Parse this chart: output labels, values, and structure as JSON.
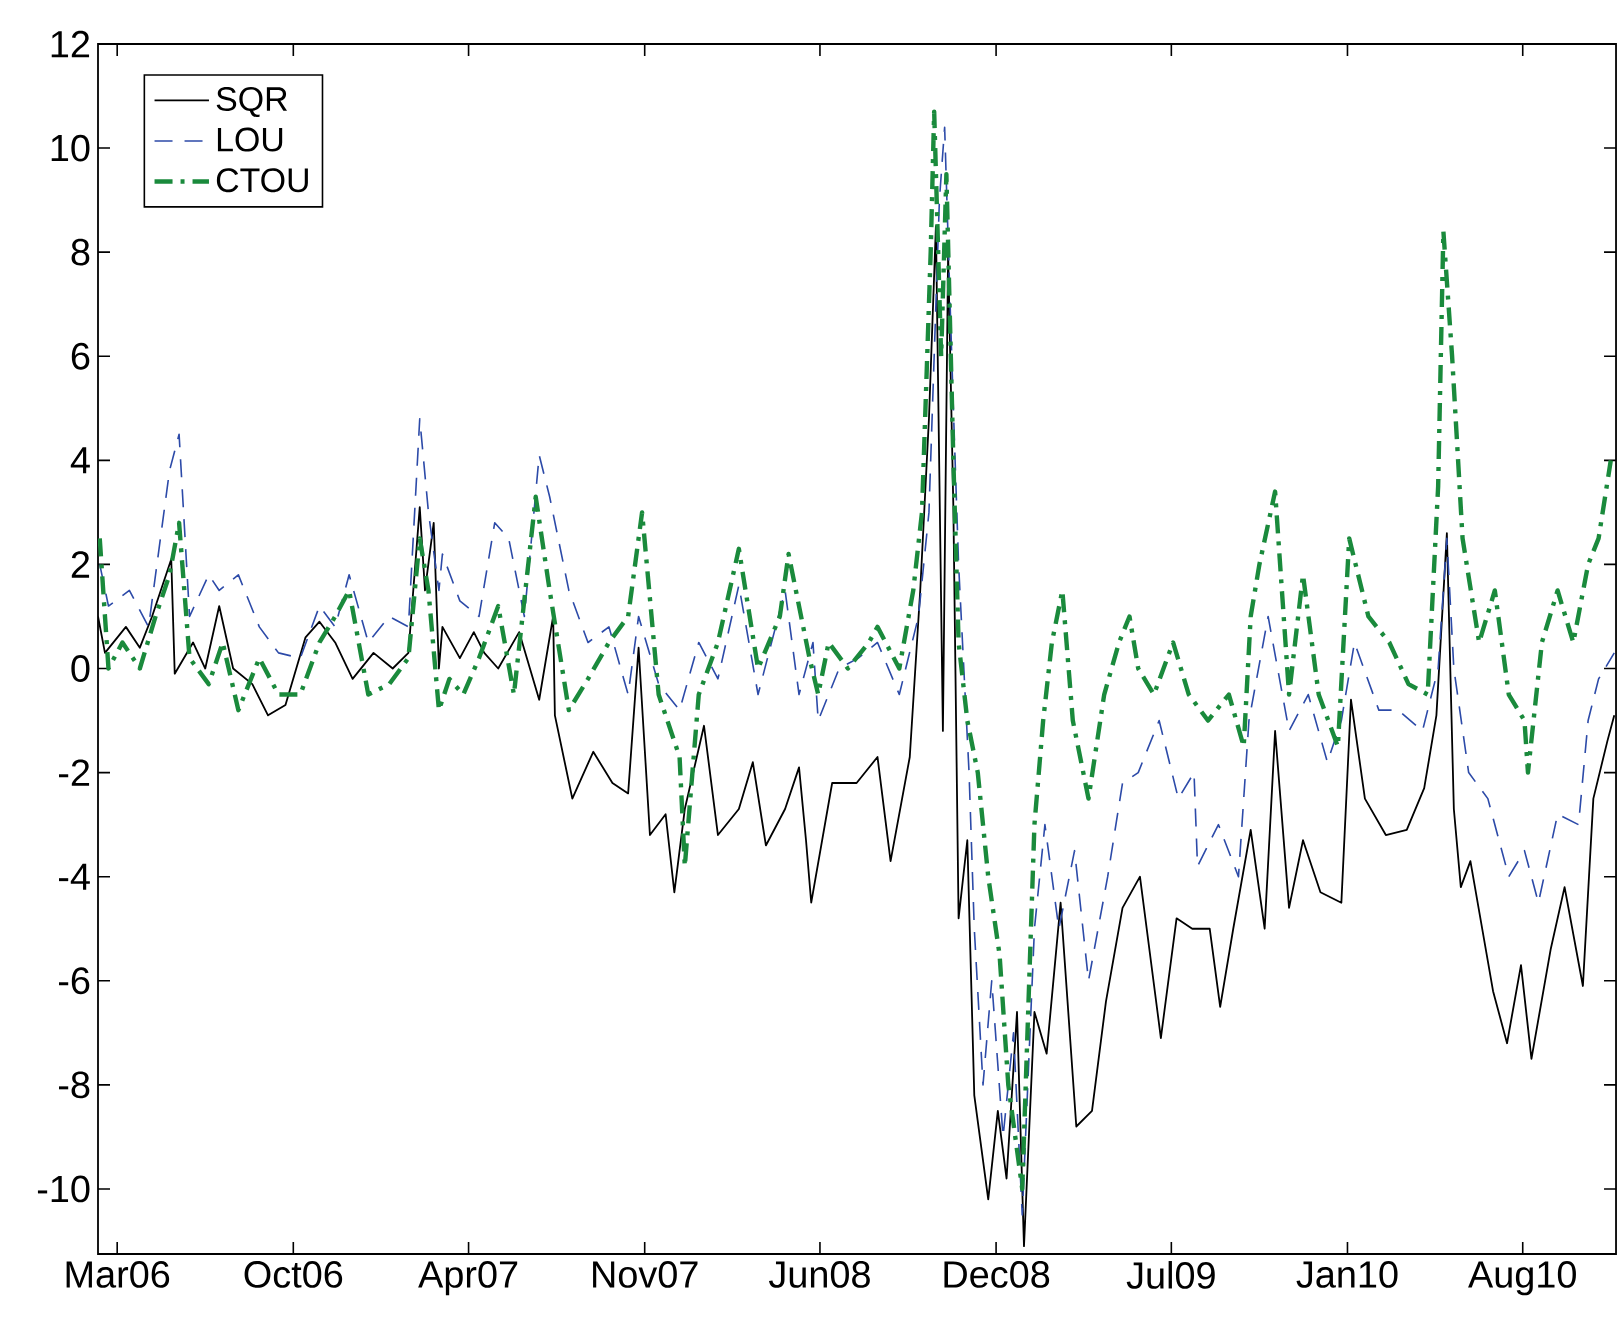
{
  "chart_data": {
    "type": "line",
    "xlim": [
      "2006-02-26",
      "2010-12-03"
    ],
    "ylim": [
      -11.25,
      12
    ],
    "xticks": [
      {
        "value": "2006-03-20",
        "label": "Mar06"
      },
      {
        "value": "2006-10-08",
        "label": "Oct06"
      },
      {
        "value": "2007-04-27",
        "label": "Apr07"
      },
      {
        "value": "2007-11-15",
        "label": "Nov07"
      },
      {
        "value": "2008-06-03",
        "label": "Jun08"
      },
      {
        "value": "2008-12-22",
        "label": "Dec08"
      },
      {
        "value": "2009-07-11",
        "label": "Jul09"
      },
      {
        "value": "2010-01-29",
        "label": "Jan10"
      },
      {
        "value": "2010-08-18",
        "label": "Aug10"
      }
    ],
    "yticks": [
      -10,
      -8,
      -6,
      -4,
      -2,
      0,
      2,
      4,
      6,
      8,
      10,
      12
    ],
    "legend": "top left",
    "marker": "none",
    "series": [
      {
        "name": "SQR",
        "color": "#000000",
        "line_style": "solid",
        "x": [
          "2006-02-26",
          "2006-03-06",
          "2006-03-30",
          "2006-04-15",
          "2006-04-29",
          "2006-05-21",
          "2006-05-25",
          "2006-06-15",
          "2006-06-29",
          "2006-07-15",
          "2006-07-31",
          "2006-08-22",
          "2006-09-09",
          "2006-09-29",
          "2006-10-22",
          "2006-11-07",
          "2006-11-25",
          "2006-12-15",
          "2007-01-08",
          "2007-01-30",
          "2007-02-17",
          "2007-03-02",
          "2007-03-08",
          "2007-03-18",
          "2007-03-24",
          "2007-03-28",
          "2007-04-17",
          "2007-05-03",
          "2007-05-15",
          "2007-05-31",
          "2007-06-24",
          "2007-07-17",
          "2007-08-02",
          "2007-08-04",
          "2007-08-24",
          "2007-09-17",
          "2007-10-09",
          "2007-10-27",
          "2007-11-08",
          "2007-11-21",
          "2007-12-09",
          "2007-12-19",
          "2007-12-31",
          "2008-01-22",
          "2008-02-07",
          "2008-03-02",
          "2008-03-18",
          "2008-04-02",
          "2008-04-24",
          "2008-05-10",
          "2008-05-18",
          "2008-05-24",
          "2008-06-17",
          "2008-07-15",
          "2008-08-08",
          "2008-08-23",
          "2008-09-14",
          "2008-09-26",
          "2008-10-06",
          "2008-10-14",
          "2008-10-22",
          "2008-10-28",
          "2008-11-03",
          "2008-11-09",
          "2008-11-19",
          "2008-11-27",
          "2008-12-13",
          "2008-12-24",
          "2009-01-03",
          "2009-01-15",
          "2009-01-23",
          "2009-02-04",
          "2009-02-18",
          "2009-03-06",
          "2009-03-24",
          "2009-04-11",
          "2009-04-27",
          "2009-05-16",
          "2009-06-05",
          "2009-06-29",
          "2009-07-17",
          "2009-08-04",
          "2009-08-24",
          "2009-09-05",
          "2009-09-20",
          "2009-10-10",
          "2009-10-26",
          "2009-11-07",
          "2009-11-23",
          "2009-12-09",
          "2009-12-29",
          "2010-01-22",
          "2010-02-02",
          "2010-02-18",
          "2010-03-14",
          "2010-04-07",
          "2010-04-27",
          "2010-05-11",
          "2010-05-23",
          "2010-05-31",
          "2010-06-08",
          "2010-06-19",
          "2010-07-15",
          "2010-07-31",
          "2010-08-16",
          "2010-08-28",
          "2010-09-19",
          "2010-10-05",
          "2010-10-26",
          "2010-11-07",
          "2010-11-23",
          "2010-12-01"
        ],
        "values": [
          1.0,
          0.3,
          0.8,
          0.4,
          1.0,
          2.1,
          -0.1,
          0.5,
          0,
          1.2,
          0,
          -0.3,
          -0.9,
          -0.7,
          0.6,
          0.9,
          0.5,
          -0.2,
          0.3,
          0,
          0.3,
          3.1,
          1.5,
          2.8,
          0.0,
          0.8,
          0.2,
          0.7,
          0.3,
          0,
          0.7,
          -0.6,
          1.0,
          -0.9,
          -2.5,
          -1.6,
          -2.2,
          -2.4,
          0.4,
          -3.2,
          -2.8,
          -4.3,
          -2.7,
          -1.1,
          -3.2,
          -2.7,
          -1.8,
          -3.4,
          -2.7,
          -1.9,
          -3.3,
          -4.5,
          -2.2,
          -2.2,
          -1.7,
          -3.7,
          -1.7,
          1.5,
          4.8,
          8.5,
          -1.2,
          8.0,
          3.1,
          -4.8,
          -3.3,
          -8.2,
          -10.2,
          -8.5,
          -9.8,
          -6.6,
          -11.1,
          -6.6,
          -7.4,
          -4.5,
          -8.8,
          -8.5,
          -6.4,
          -4.6,
          -4.0,
          -7.1,
          -4.8,
          -5.0,
          -5.0,
          -6.5,
          -5.0,
          -3.1,
          -5.0,
          -1.2,
          -4.6,
          -3.3,
          -4.3,
          -4.5,
          -0.6,
          -2.5,
          -3.2,
          -3.1,
          -2.3,
          -0.9,
          2.6,
          -2.7,
          -4.2,
          -3.7,
          -6.2,
          -7.2,
          -5.7,
          -7.5,
          -5.4,
          -4.2,
          -6.1,
          -2.5,
          -1.4,
          -0.9
        ]
      },
      {
        "name": "LOU",
        "color": "#2c4aa8",
        "line_style": "dashed",
        "x": [
          "2006-02-28",
          "2006-03-10",
          "2006-04-03",
          "2006-04-25",
          "2006-05-19",
          "2006-05-30",
          "2006-06-11",
          "2006-07-03",
          "2006-07-15",
          "2006-08-06",
          "2006-08-30",
          "2006-09-21",
          "2006-10-16",
          "2006-11-07",
          "2006-11-25",
          "2006-12-11",
          "2007-01-02",
          "2007-01-26",
          "2007-02-17",
          "2007-03-02",
          "2007-03-12",
          "2007-03-24",
          "2007-03-28",
          "2007-04-17",
          "2007-05-09",
          "2007-05-27",
          "2007-06-12",
          "2007-06-30",
          "2007-07-17",
          "2007-07-29",
          "2007-08-20",
          "2007-09-11",
          "2007-10-05",
          "2007-10-27",
          "2007-11-08",
          "2007-12-01",
          "2007-12-25",
          "2008-01-16",
          "2008-02-07",
          "2008-03-02",
          "2008-03-24",
          "2008-04-24",
          "2008-05-10",
          "2008-05-26",
          "2008-06-01",
          "2008-06-25",
          "2008-07-17",
          "2008-08-08",
          "2008-09-02",
          "2008-09-24",
          "2008-10-06",
          "2008-10-18",
          "2008-10-24",
          "2008-11-03",
          "2008-11-09",
          "2008-11-21",
          "2008-11-27",
          "2008-12-07",
          "2008-12-17",
          "2008-12-30",
          "2009-01-11",
          "2009-01-21",
          "2009-02-04",
          "2009-02-16",
          "2009-03-04",
          "2009-03-22",
          "2009-04-07",
          "2009-04-29",
          "2009-05-16",
          "2009-06-03",
          "2009-06-27",
          "2009-07-19",
          "2009-08-06",
          "2009-08-10",
          "2009-09-03",
          "2009-09-26",
          "2009-10-08",
          "2009-10-30",
          "2009-11-23",
          "2009-12-15",
          "2010-01-06",
          "2010-01-22",
          "2010-02-06",
          "2010-03-06",
          "2010-03-28",
          "2010-04-25",
          "2010-05-13",
          "2010-05-23",
          "2010-05-31",
          "2010-06-17",
          "2010-07-09",
          "2010-08-02",
          "2010-08-20",
          "2010-09-05",
          "2010-09-27",
          "2010-10-21",
          "2010-11-01",
          "2010-11-13",
          "2010-12-01"
        ],
        "values": [
          2.0,
          1.2,
          1.5,
          0.8,
          3.8,
          4.5,
          1.0,
          1.8,
          1.5,
          1.8,
          0.8,
          0.3,
          0.2,
          1.2,
          0.8,
          1.8,
          0.5,
          1.0,
          0.8,
          4.8,
          3.0,
          1.5,
          2.2,
          1.3,
          1.0,
          2.8,
          2.5,
          1.0,
          4.1,
          3.3,
          1.5,
          0.5,
          0.8,
          -0.5,
          1.0,
          -0.3,
          -0.8,
          0.5,
          -0.2,
          1.6,
          -0.5,
          1.5,
          -0.5,
          0.5,
          -1.0,
          0,
          0.2,
          0.5,
          -0.5,
          1.0,
          3.0,
          9.0,
          10.4,
          5.0,
          2.0,
          -2.0,
          -5.0,
          -8.0,
          -6.0,
          -9.0,
          -7.0,
          -10.5,
          -5.0,
          -3.0,
          -5.0,
          -3.5,
          -6.0,
          -4.0,
          -2.2,
          -2.0,
          -1.0,
          -2.5,
          -2.0,
          -3.8,
          -3.0,
          -4.0,
          -1.0,
          1.0,
          -1.2,
          -0.5,
          -1.8,
          -1.0,
          0.5,
          -0.8,
          -0.8,
          -1.2,
          0,
          2.5,
          0.0,
          -2.0,
          -2.5,
          -4.0,
          -3.5,
          -4.5,
          -2.8,
          -3.0,
          -1.0,
          -0.2,
          0.3
        ]
      },
      {
        "name": "CTOU",
        "color": "#1a8a3c",
        "line_style": "dashdot",
        "x": [
          "2006-02-28",
          "2006-03-10",
          "2006-03-26",
          "2006-04-15",
          "2006-05-03",
          "2006-05-19",
          "2006-05-30",
          "2006-06-11",
          "2006-07-03",
          "2006-07-19",
          "2006-08-06",
          "2006-08-30",
          "2006-09-21",
          "2006-10-16",
          "2006-11-07",
          "2006-11-25",
          "2006-12-11",
          "2007-01-02",
          "2007-01-26",
          "2007-02-17",
          "2007-03-02",
          "2007-03-12",
          "2007-03-24",
          "2007-04-05",
          "2007-04-21",
          "2007-05-09",
          "2007-05-31",
          "2007-06-18",
          "2007-07-13",
          "2007-07-29",
          "2007-08-20",
          "2007-09-11",
          "2007-10-05",
          "2007-10-27",
          "2007-11-12",
          "2007-12-01",
          "2007-12-25",
          "2007-12-31",
          "2008-01-16",
          "2008-02-07",
          "2008-03-02",
          "2008-03-24",
          "2008-04-18",
          "2008-04-28",
          "2008-05-22",
          "2008-06-01",
          "2008-06-13",
          "2008-07-05",
          "2008-07-29",
          "2008-08-08",
          "2008-09-02",
          "2008-09-18",
          "2008-09-28",
          "2008-10-08",
          "2008-10-12",
          "2008-10-20",
          "2008-10-26",
          "2008-11-03",
          "2008-11-09",
          "2008-11-19",
          "2008-12-01",
          "2008-12-13",
          "2008-12-26",
          "2009-01-05",
          "2009-01-21",
          "2009-02-04",
          "2009-02-14",
          "2009-02-24",
          "2009-03-08",
          "2009-03-20",
          "2009-04-07",
          "2009-04-25",
          "2009-05-12",
          "2009-05-24",
          "2009-06-03",
          "2009-06-21",
          "2009-07-13",
          "2009-07-31",
          "2009-08-22",
          "2009-09-15",
          "2009-10-02",
          "2009-10-10",
          "2009-10-20",
          "2009-11-07",
          "2009-11-23",
          "2009-12-09",
          "2009-12-27",
          "2010-01-18",
          "2010-01-31",
          "2010-02-22",
          "2010-03-18",
          "2010-04-09",
          "2010-05-01",
          "2010-05-13",
          "2010-05-19",
          "2010-05-29",
          "2010-06-10",
          "2010-06-29",
          "2010-07-17",
          "2010-08-02",
          "2010-08-20",
          "2010-08-24",
          "2010-09-09",
          "2010-09-27",
          "2010-10-15",
          "2010-11-01",
          "2010-11-13",
          "2010-11-27"
        ],
        "values": [
          2.5,
          0,
          0.5,
          0,
          1.0,
          1.8,
          2.8,
          0.2,
          -0.3,
          0.5,
          -0.8,
          0.2,
          -0.5,
          -0.5,
          0.5,
          1.0,
          1.5,
          -0.5,
          -0.3,
          0.2,
          2.5,
          1.5,
          -0.8,
          -0.2,
          -0.5,
          0.2,
          1.2,
          -0.5,
          3.3,
          1.5,
          -0.8,
          -0.2,
          0.5,
          1.0,
          3.0,
          -0.5,
          -1.7,
          -3.8,
          -0.5,
          0.5,
          2.3,
          0,
          1.0,
          2.2,
          0.2,
          -0.5,
          0.5,
          0.0,
          0.5,
          0.8,
          0,
          1.5,
          3.0,
          8.0,
          10.7,
          6.0,
          9.5,
          4.0,
          0.5,
          -1.0,
          -2.0,
          -4.0,
          -5.5,
          -8.0,
          -10.0,
          -3.0,
          -1.0,
          0.5,
          1.5,
          -1.0,
          -2.5,
          -0.5,
          0.5,
          1.0,
          0.0,
          -0.5,
          0.5,
          -0.5,
          -1.0,
          -0.5,
          -1.5,
          1.0,
          2.0,
          3.4,
          -0.5,
          1.8,
          -0.5,
          -1.5,
          2.5,
          1.0,
          0.5,
          -0.3,
          -0.5,
          3.5,
          8.4,
          6.0,
          2.5,
          0.5,
          1.5,
          -0.5,
          -1.0,
          -2.0,
          0.5,
          1.5,
          0.5,
          2.0,
          2.5,
          4.0
        ]
      }
    ]
  }
}
